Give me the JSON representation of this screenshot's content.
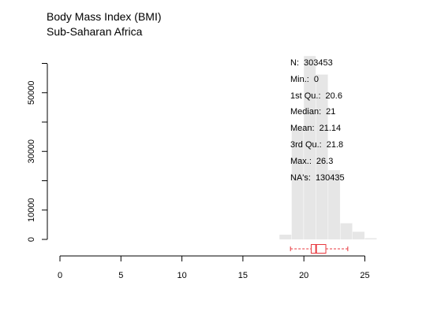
{
  "chart_data": {
    "type": "histogram",
    "title": "Body Mass Index (BMI)",
    "subtitle": "Sub-Saharan Africa",
    "xlim": [
      0,
      26
    ],
    "ylim": [
      0,
      62000
    ],
    "x_ticks": [
      "0",
      "5",
      "10",
      "15",
      "20",
      "25"
    ],
    "y_ticks": [
      "0",
      "10000",
      "30000",
      "50000"
    ],
    "bins": [
      {
        "x0": 18,
        "x1": 19,
        "count": 1600
      },
      {
        "x0": 19,
        "x1": 20,
        "count": 37700
      },
      {
        "x0": 20,
        "x1": 21,
        "count": 62500
      },
      {
        "x0": 21,
        "x1": 22,
        "count": 56200
      },
      {
        "x0": 22,
        "x1": 23,
        "count": 23600
      },
      {
        "x0": 23,
        "x1": 24,
        "count": 5500
      },
      {
        "x0": 24,
        "x1": 25,
        "count": 2600
      },
      {
        "x0": 25,
        "x1": 26,
        "count": 400
      }
    ],
    "boxplot": {
      "min": 18.9,
      "q1": 20.6,
      "median": 21,
      "q3": 21.8,
      "max": 23.6
    },
    "bar_color": "#e6e6e6",
    "box_color": "#e8393f",
    "stats": [
      {
        "label": "N:",
        "value": "303453"
      },
      {
        "label": "Min.:",
        "value": "0"
      },
      {
        "label": "1st Qu.:",
        "value": "20.6"
      },
      {
        "label": "Median:",
        "value": "21"
      },
      {
        "label": "Mean:",
        "value": "21.14"
      },
      {
        "label": "3rd Qu.:",
        "value": "21.8"
      },
      {
        "label": "Max.:",
        "value": "26.3"
      },
      {
        "label": "NA's:",
        "value": "130435"
      }
    ]
  }
}
